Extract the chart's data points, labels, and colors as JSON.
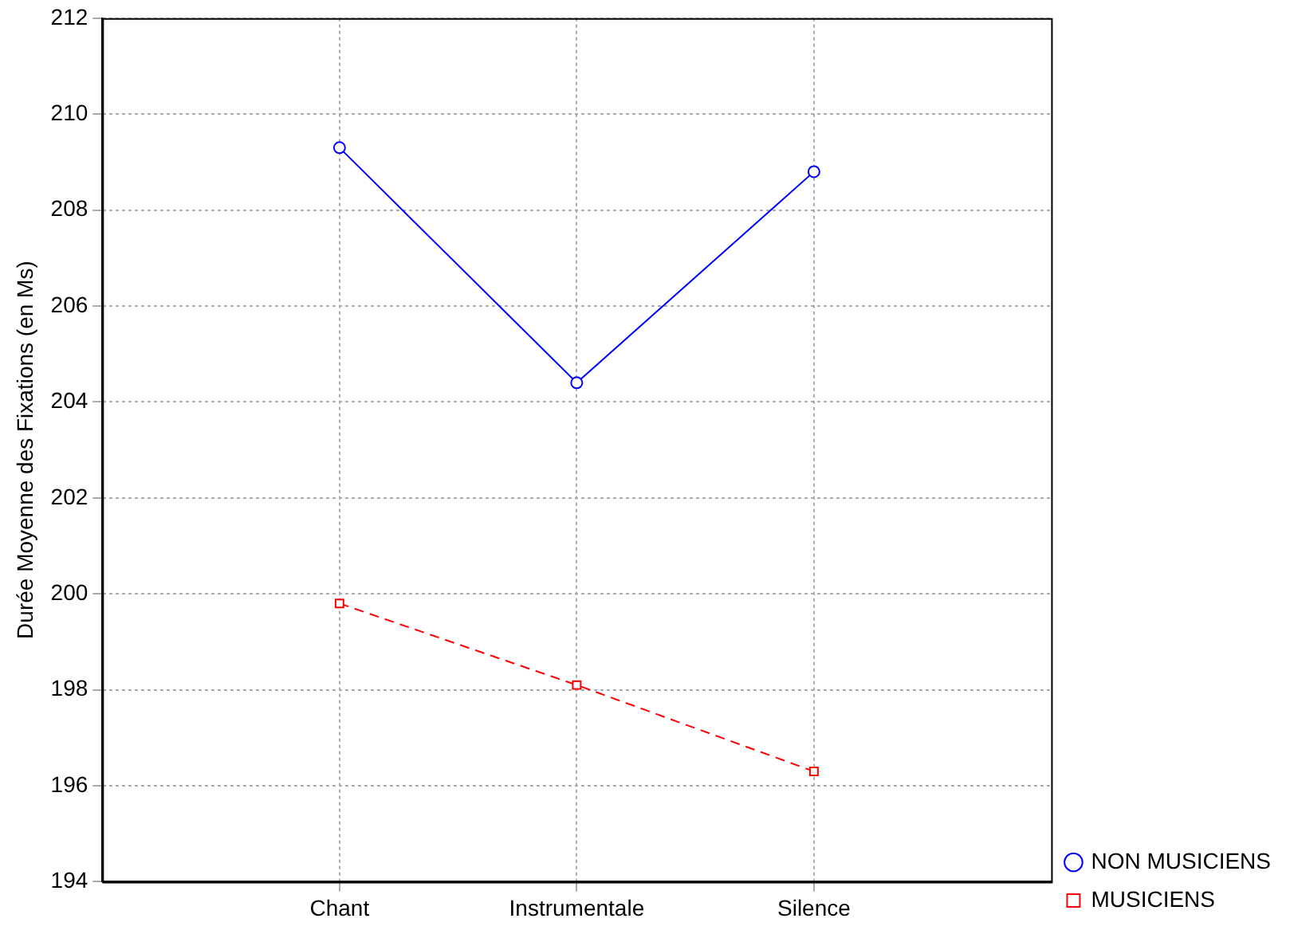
{
  "chart_data": {
    "type": "line",
    "ylabel": "Durée Moyenne des Fixations (en Ms)",
    "categories": [
      "Chant",
      "Instrumentale",
      "Silence"
    ],
    "series": [
      {
        "name": "NON MUSICIENS",
        "color": "#0000ff",
        "values": [
          209.3,
          204.4,
          208.8
        ],
        "marker": "circle",
        "line_style": "solid"
      },
      {
        "name": "MUSICIENS",
        "color": "#ff0000",
        "values": [
          199.8,
          198.1,
          196.3
        ],
        "marker": "square",
        "line_style": "dashed"
      }
    ],
    "ylim": [
      194,
      212
    ],
    "yticks": [
      194,
      196,
      198,
      200,
      202,
      204,
      206,
      208,
      210,
      212
    ],
    "grid": true,
    "legend": "bottom right"
  }
}
